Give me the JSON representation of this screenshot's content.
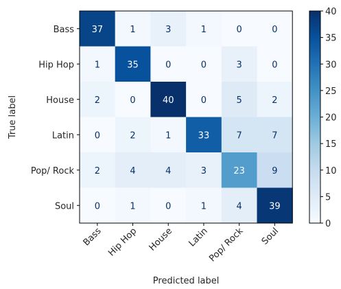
{
  "chart_data": {
    "type": "heatmap",
    "title": "",
    "xlabel": "Predicted label",
    "ylabel": "True label",
    "x_categories": [
      "Bass",
      "Hip Hop",
      "House",
      "Latin",
      "Pop/ Rock",
      "Soul"
    ],
    "y_categories": [
      "Bass",
      "Hip Hop",
      "House",
      "Latin",
      "Pop/ Rock",
      "Soul"
    ],
    "values": [
      [
        37,
        1,
        3,
        1,
        0,
        0
      ],
      [
        1,
        35,
        0,
        0,
        3,
        0
      ],
      [
        2,
        0,
        40,
        0,
        5,
        2
      ],
      [
        0,
        2,
        1,
        33,
        7,
        7
      ],
      [
        2,
        4,
        4,
        3,
        23,
        9
      ],
      [
        0,
        1,
        0,
        1,
        4,
        39
      ]
    ],
    "colormap": "Blues",
    "colorbar_range": [
      0,
      40
    ],
    "colorbar_ticks": [
      0,
      5,
      10,
      15,
      20,
      25,
      30,
      35,
      40
    ],
    "grid": false
  }
}
